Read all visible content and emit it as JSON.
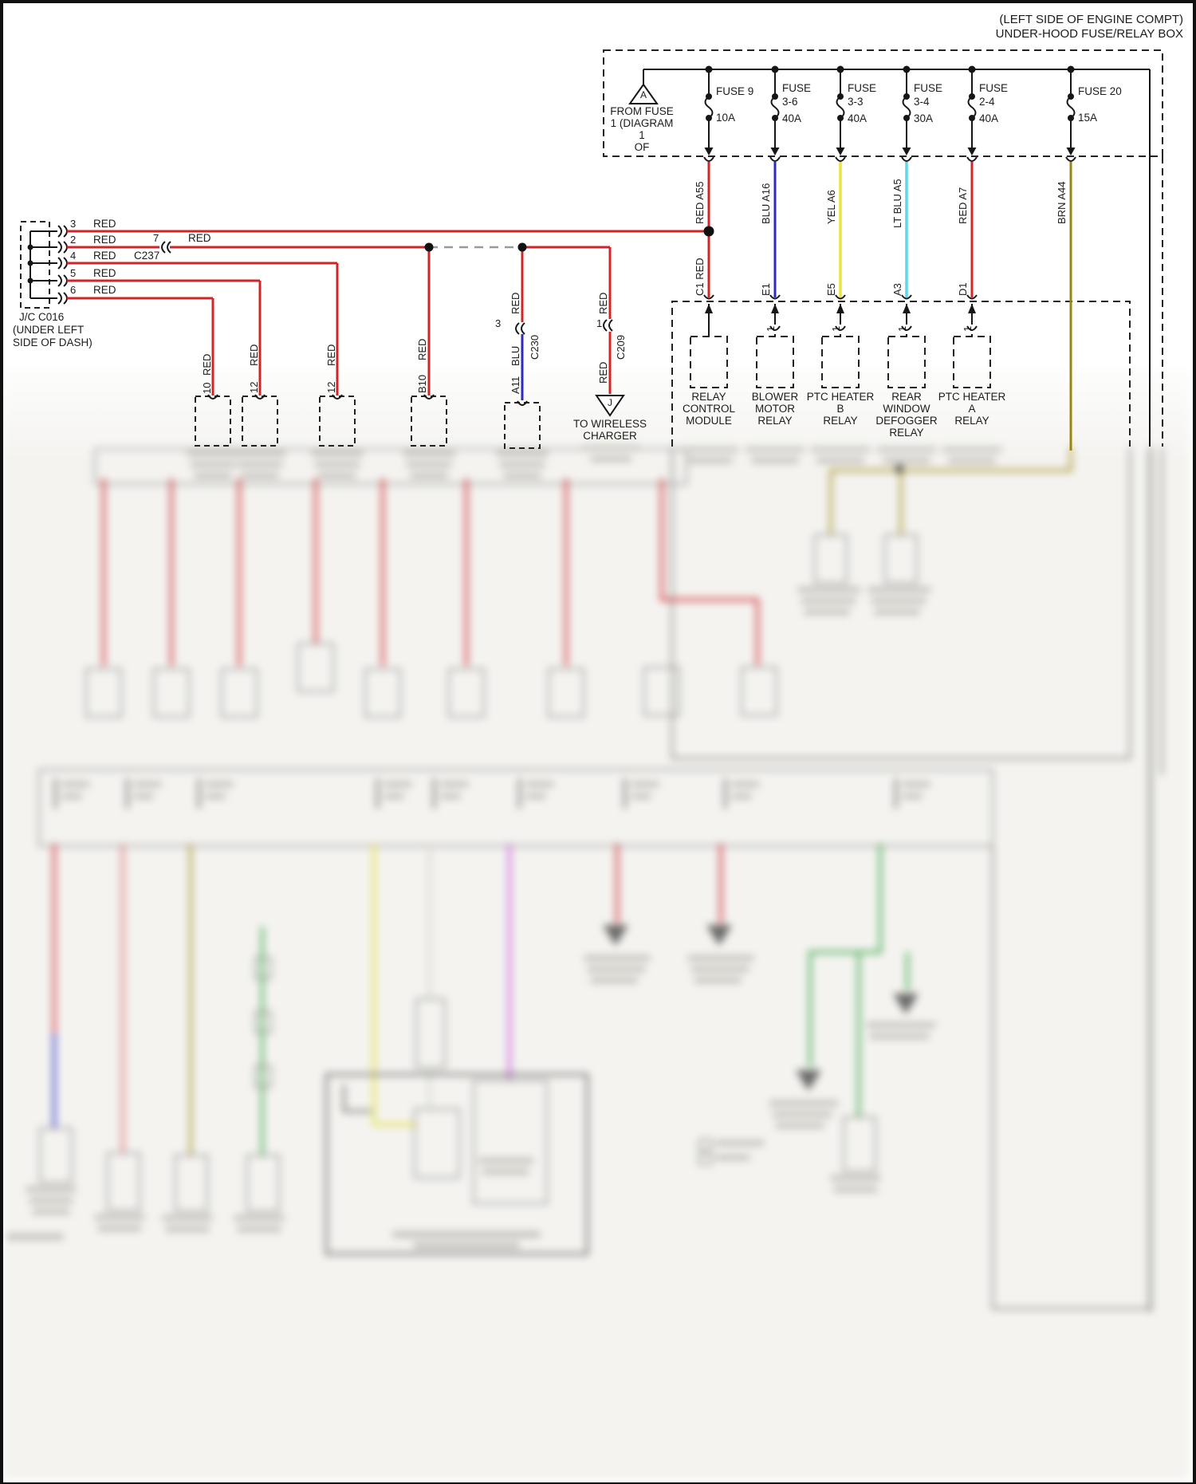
{
  "header": {
    "line1": "(LEFT SIDE OF ENGINE COMPT)",
    "line2": "UNDER-HOOD FUSE/RELAY BOX"
  },
  "source_marker": {
    "id": "A",
    "caption_lines": [
      "FROM FUSE",
      "1 (DIAGRAM",
      "1",
      "OF"
    ]
  },
  "fuse_box": {
    "fuses": [
      {
        "name_lines": [
          "FUSE 9"
        ],
        "rating": "10A"
      },
      {
        "name_lines": [
          "FUSE",
          "3-6"
        ],
        "rating": "40A"
      },
      {
        "name_lines": [
          "FUSE",
          "3-3"
        ],
        "rating": "40A"
      },
      {
        "name_lines": [
          "FUSE",
          "3-4"
        ],
        "rating": "30A"
      },
      {
        "name_lines": [
          "FUSE",
          "2-4"
        ],
        "rating": "40A"
      },
      {
        "name_lines": [
          "FUSE 20"
        ],
        "rating": "15A"
      }
    ]
  },
  "feed_wires": [
    {
      "top_label": "RED A55",
      "bottom_label": "C1 RED",
      "color": "#d02528"
    },
    {
      "top_label": "BLU A16",
      "bottom_label": "E1",
      "color": "#2b2bbf"
    },
    {
      "top_label": "YEL A6",
      "bottom_label": "E5",
      "color": "#e9e43e"
    },
    {
      "top_label": "LT BLU A5",
      "bottom_label": "A3",
      "color": "#5fd7e8"
    },
    {
      "top_label": "RED A7",
      "bottom_label": "D1",
      "color": "#d02528"
    },
    {
      "top_label": "BRN A44",
      "bottom_label": "",
      "color": "#9a850f"
    }
  ],
  "relays": [
    {
      "pin": "",
      "name_lines": [
        "RELAY",
        "CONTROL",
        "MODULE",
        ""
      ]
    },
    {
      "pin": "1",
      "name_lines": [
        "BLOWER",
        "MOTOR",
        "RELAY",
        ""
      ]
    },
    {
      "pin": "1",
      "name_lines": [
        "PTC HEATER",
        "B",
        "RELAY",
        ""
      ]
    },
    {
      "pin": "1",
      "name_lines": [
        "REAR",
        "WINDOW",
        "DEFOGGER",
        "RELAY"
      ]
    },
    {
      "pin": "1",
      "name_lines": [
        "PTC HEATER",
        "A",
        "RELAY",
        ""
      ]
    }
  ],
  "junction_connector": {
    "name": "J/C C016",
    "location_lines": [
      "(UNDER LEFT",
      "SIDE OF DASH)"
    ],
    "pins": [
      "3",
      "2",
      "4",
      "5",
      "6"
    ],
    "wire_color": "RED"
  },
  "inline_connectors": {
    "c237": {
      "pin": "7",
      "name": "C237",
      "wire_color": "RED"
    },
    "c230": {
      "pin": "3",
      "name": "C230",
      "color_above": "RED",
      "color_below": "BLU",
      "pin_below": "A11"
    },
    "c209": {
      "pin": "1",
      "name": "C209",
      "color_above": "RED",
      "color_below": "RED"
    }
  },
  "charger_branch": {
    "triangle": "J",
    "dest_lines": [
      "TO WIRELESS",
      "CHARGER"
    ]
  },
  "branch_drops": [
    {
      "wire_color": "RED",
      "pin": "10"
    },
    {
      "wire_color": "RED",
      "pin": "12"
    },
    {
      "wire_color": "RED",
      "pin": "12"
    },
    {
      "wire_color": "RED",
      "pin": "B10"
    }
  ],
  "colors": {
    "red": "#d02528",
    "blue": "#2b2bbf",
    "yellow": "#e9e43e",
    "lt_blue": "#5fd7e8",
    "brown": "#9a850f",
    "line": "#161616"
  }
}
